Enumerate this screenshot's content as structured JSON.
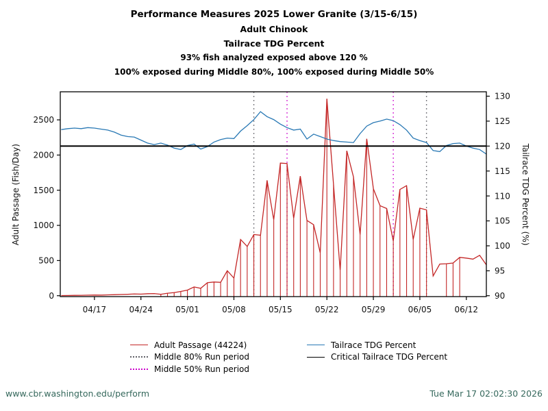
{
  "titles": [
    "Performance Measures 2025 Lower Granite (3/15-6/15)",
    "Adult Chinook",
    "Tailrace TDG Percent",
    "93% fish analyzed exposed above 120 %",
    "100% exposed during Middle 80%, 100% exposed during Middle 50%"
  ],
  "footer": {
    "url": "www.cbr.washington.edu/perform",
    "timestamp": "Tue Mar 17 02:02:30 2026"
  },
  "legend": {
    "items": [
      {
        "label": "Adult Passage (44224)",
        "style": "solid",
        "color": "#c32525"
      },
      {
        "label": "Middle 80% Run period",
        "style": "dotted",
        "color": "#5f5f66"
      },
      {
        "label": "Middle 50% Run period",
        "style": "dotted",
        "color": "#cc00cc"
      },
      {
        "label": "Tailrace TDG Percent",
        "style": "solid",
        "color": "#2878b4"
      },
      {
        "label": "Critical Tailrace TDG Percent",
        "style": "solid",
        "color": "#000000"
      }
    ]
  },
  "chart_data": {
    "type": "line",
    "title": "Performance Measures 2025 Lower Granite (3/15-6/15)",
    "grid": false,
    "legend_position": "bottom",
    "x": [
      "04/12",
      "04/13",
      "04/14",
      "04/15",
      "04/16",
      "04/17",
      "04/18",
      "04/19",
      "04/20",
      "04/21",
      "04/22",
      "04/23",
      "04/24",
      "04/25",
      "04/26",
      "04/27",
      "04/28",
      "04/29",
      "04/30",
      "05/01",
      "05/02",
      "05/03",
      "05/04",
      "05/05",
      "05/06",
      "05/07",
      "05/08",
      "05/09",
      "05/10",
      "05/11",
      "05/12",
      "05/13",
      "05/14",
      "05/15",
      "05/16",
      "05/17",
      "05/18",
      "05/19",
      "05/20",
      "05/21",
      "05/22",
      "05/23",
      "05/24",
      "05/25",
      "05/26",
      "05/27",
      "05/28",
      "05/29",
      "05/30",
      "05/31",
      "06/01",
      "06/02",
      "06/03",
      "06/04",
      "06/05",
      "06/06",
      "06/07",
      "06/08",
      "06/09",
      "06/10",
      "06/11",
      "06/12",
      "06/13",
      "06/14",
      "06/15"
    ],
    "x_tick_labels": [
      "04/17",
      "04/24",
      "05/01",
      "05/08",
      "05/15",
      "05/22",
      "05/29",
      "06/05",
      "06/12"
    ],
    "left_axis": {
      "label": "Adult Passage (Fish/Day)",
      "ticks": [
        0,
        500,
        1000,
        1500,
        2000,
        2500
      ],
      "range": [
        0,
        2900
      ]
    },
    "right_axis": {
      "label": "Tailrace TDG Percent (%)",
      "ticks": [
        90,
        95,
        100,
        105,
        110,
        115,
        120,
        125,
        130
      ],
      "range": [
        90,
        130.9
      ]
    },
    "series": [
      {
        "name": "Adult Passage (44224)",
        "axis": "left",
        "color": "#c32525",
        "style": "solid",
        "values": [
          2,
          3,
          5,
          6,
          8,
          10,
          9,
          12,
          15,
          18,
          20,
          25,
          22,
          28,
          30,
          20,
          35,
          45,
          60,
          80,
          125,
          105,
          185,
          195,
          190,
          355,
          250,
          800,
          700,
          870,
          860,
          1640,
          1080,
          1885,
          1880,
          1100,
          1700,
          1070,
          1010,
          610,
          2800,
          1580,
          360,
          2060,
          1690,
          870,
          2230,
          1520,
          1280,
          1240,
          780,
          1510,
          1565,
          800,
          1245,
          1220,
          280,
          450,
          455,
          465,
          545,
          535,
          520,
          575,
          440
        ],
        "stem_ranges": [
          [
            "04/27",
            "06/06"
          ],
          [
            "06/09",
            "06/11"
          ]
        ]
      },
      {
        "name": "Tailrace TDG Percent",
        "axis": "right",
        "color": "#2878b4",
        "style": "solid",
        "values": [
          123.3,
          123.5,
          123.6,
          123.5,
          123.7,
          123.6,
          123.4,
          123.2,
          122.8,
          122.2,
          121.9,
          121.8,
          121.2,
          120.6,
          120.3,
          120.6,
          120.2,
          119.6,
          119.3,
          120.1,
          120.4,
          119.4,
          119.9,
          120.8,
          121.3,
          121.6,
          121.5,
          123.0,
          124.1,
          125.3,
          126.9,
          125.9,
          125.3,
          124.4,
          123.7,
          123.2,
          123.4,
          121.4,
          122.4,
          121.9,
          121.4,
          121.1,
          120.9,
          120.8,
          120.7,
          122.5,
          124.0,
          124.7,
          125.0,
          125.4,
          125.1,
          124.3,
          123.2,
          121.6,
          121.1,
          120.7,
          119.1,
          118.9,
          120.1,
          120.5,
          120.6,
          120.0,
          119.6,
          119.3,
          118.4
        ]
      }
    ],
    "reference_lines": [
      {
        "name": "Critical Tailrace TDG Percent",
        "axis": "right",
        "value": 120,
        "color": "#000000",
        "style": "solid"
      }
    ],
    "run_periods": [
      {
        "name": "Middle 80% Run period",
        "start": "05/11",
        "end": "06/06",
        "color": "#5f5f66",
        "style": "dotted"
      },
      {
        "name": "Middle 50% Run period",
        "start": "05/16",
        "end": "06/01",
        "color": "#cc00cc",
        "style": "dotted"
      }
    ]
  }
}
